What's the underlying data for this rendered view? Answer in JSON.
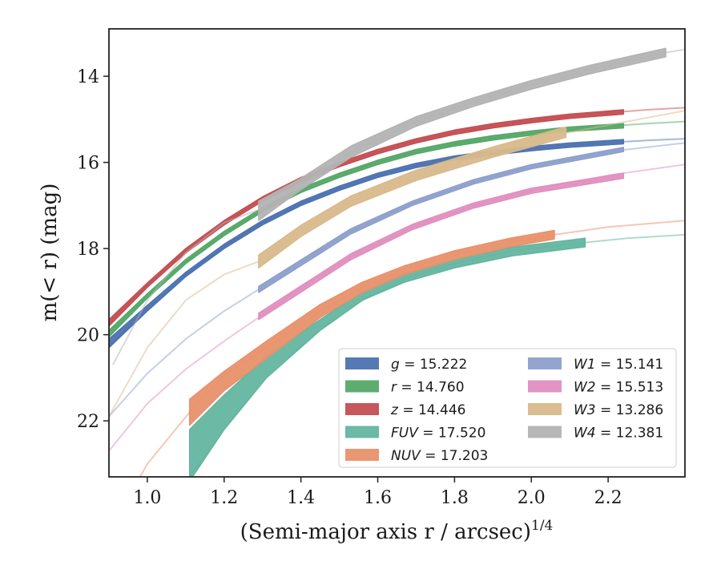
{
  "chart_data": {
    "type": "line",
    "title": "",
    "xlabel": "(Semi-major axis r / arcsec)",
    "xlabel_exponent": "1/4",
    "ylabel": "m(< r) (mag)",
    "xlim": [
      0.9,
      2.4
    ],
    "ylim": [
      23.3,
      12.9
    ],
    "y_inverted": true,
    "grid": false,
    "legend_placement": "lower-right",
    "xticks": [
      "1.0",
      "1.2",
      "1.4",
      "1.6",
      "1.8",
      "2.0",
      "2.2"
    ],
    "yticks": [
      "14",
      "16",
      "18",
      "20",
      "22"
    ],
    "series": [
      {
        "name": "g",
        "label_value": "= 15.222",
        "color": "#4c72b0",
        "light": {
          "x": [
            0.9,
            1.0,
            1.1,
            1.2,
            1.3,
            1.4,
            1.5,
            1.6,
            1.7,
            1.8,
            1.9,
            2.0,
            2.1,
            2.2,
            2.3,
            2.4
          ],
          "y": [
            20.25,
            19.4,
            18.6,
            17.95,
            17.4,
            16.95,
            16.6,
            16.3,
            16.07,
            15.9,
            15.78,
            15.68,
            15.6,
            15.54,
            15.49,
            15.45
          ]
        },
        "band": {
          "x": [
            0.9,
            1.0,
            1.1,
            1.2,
            1.3,
            1.4,
            1.5,
            1.6,
            1.7,
            1.8,
            1.9,
            2.0,
            2.1,
            2.24
          ],
          "y_lo": [
            20.3,
            19.45,
            18.65,
            18.0,
            17.45,
            17.0,
            16.65,
            16.35,
            16.12,
            15.95,
            15.83,
            15.73,
            15.65,
            15.57
          ],
          "y_hi": [
            20.1,
            19.32,
            18.55,
            17.9,
            17.35,
            16.9,
            16.55,
            16.25,
            16.02,
            15.85,
            15.73,
            15.63,
            15.55,
            15.47
          ]
        }
      },
      {
        "name": "r",
        "label_value": "= 14.760",
        "color": "#55a868",
        "light": {
          "x": [
            0.9,
            1.0,
            1.1,
            1.2,
            1.3,
            1.4,
            1.5,
            1.6,
            1.7,
            1.8,
            1.9,
            2.0,
            2.1,
            2.2,
            2.3,
            2.4
          ],
          "y": [
            19.95,
            19.1,
            18.3,
            17.65,
            17.1,
            16.65,
            16.3,
            16.0,
            15.75,
            15.57,
            15.43,
            15.32,
            15.23,
            15.16,
            15.1,
            15.05
          ]
        },
        "band": {
          "x": [
            0.9,
            1.0,
            1.1,
            1.2,
            1.3,
            1.4,
            1.5,
            1.6,
            1.7,
            1.8,
            1.9,
            2.0,
            2.1,
            2.24
          ],
          "y_lo": [
            20.05,
            19.15,
            18.35,
            17.7,
            17.15,
            16.7,
            16.35,
            16.05,
            15.8,
            15.62,
            15.48,
            15.37,
            15.28,
            15.2
          ],
          "y_hi": [
            19.9,
            19.05,
            18.25,
            17.6,
            17.05,
            16.6,
            16.25,
            15.95,
            15.7,
            15.52,
            15.38,
            15.27,
            15.18,
            15.1
          ]
        }
      },
      {
        "name": "z",
        "label_value": "= 14.446",
        "color": "#c44e52",
        "light": {
          "x": [
            0.9,
            1.0,
            1.1,
            1.2,
            1.3,
            1.4,
            1.5,
            1.6,
            1.7,
            1.8,
            1.9,
            2.0,
            2.1,
            2.2,
            2.3,
            2.4
          ],
          "y": [
            19.7,
            18.85,
            18.05,
            17.4,
            16.85,
            16.4,
            16.05,
            15.75,
            15.5,
            15.3,
            15.15,
            15.03,
            14.93,
            14.85,
            14.78,
            14.73
          ]
        },
        "band": {
          "x": [
            0.9,
            1.0,
            1.1,
            1.2,
            1.3,
            1.4,
            1.5,
            1.6,
            1.7,
            1.8,
            1.9,
            2.0,
            2.1,
            2.24
          ],
          "y_lo": [
            19.8,
            18.9,
            18.1,
            17.45,
            16.9,
            16.45,
            16.1,
            15.8,
            15.55,
            15.35,
            15.2,
            15.08,
            14.98,
            14.88
          ],
          "y_hi": [
            19.65,
            18.8,
            18.0,
            17.35,
            16.8,
            16.35,
            16.0,
            15.7,
            15.45,
            15.25,
            15.1,
            14.98,
            14.88,
            14.78
          ]
        }
      },
      {
        "name": "FUV",
        "label_value": "= 17.520",
        "color": "#64b5a0",
        "light": {
          "x": [
            1.0,
            1.05,
            1.11,
            1.2,
            1.31,
            1.45,
            1.56,
            1.67,
            1.8,
            1.95,
            2.15,
            2.25,
            2.4
          ],
          "y": [
            24.6,
            24.0,
            23.3,
            22.2,
            21.0,
            19.9,
            19.2,
            18.7,
            18.35,
            18.05,
            17.85,
            17.76,
            17.68
          ]
        },
        "band": {
          "x": [
            1.11,
            1.2,
            1.31,
            1.45,
            1.56,
            1.67,
            1.8,
            1.95,
            2.14
          ],
          "y_lo": [
            23.4,
            22.2,
            21.0,
            19.9,
            19.2,
            18.78,
            18.45,
            18.17,
            17.96
          ],
          "y_hi": [
            22.2,
            21.4,
            20.5,
            19.65,
            19.0,
            18.58,
            18.25,
            17.97,
            17.76
          ]
        }
      },
      {
        "name": "NUV",
        "label_value": "= 17.203",
        "color": "#e8916a",
        "light": {
          "x": [
            0.9,
            1.0,
            1.11,
            1.2,
            1.31,
            1.45,
            1.56,
            1.67,
            1.8,
            1.95,
            2.06,
            2.2,
            2.4
          ],
          "y": [
            24.6,
            23.0,
            21.8,
            20.95,
            20.3,
            19.45,
            18.9,
            18.5,
            18.15,
            17.85,
            17.68,
            17.5,
            17.35
          ]
        },
        "band": {
          "x": [
            1.11,
            1.2,
            1.31,
            1.45,
            1.56,
            1.67,
            1.8,
            1.95,
            2.06
          ],
          "y_lo": [
            22.1,
            21.3,
            20.55,
            19.6,
            19.02,
            18.6,
            18.25,
            17.95,
            17.78
          ],
          "y_hi": [
            21.5,
            20.85,
            20.15,
            19.3,
            18.78,
            18.4,
            18.05,
            17.75,
            17.58
          ]
        }
      },
      {
        "name": "W1",
        "label_value": "= 15.141",
        "color": "#8da0cb",
        "light": {
          "x": [
            0.9,
            1.0,
            1.1,
            1.2,
            1.29,
            1.4,
            1.53,
            1.69,
            1.85,
            2.0,
            2.2,
            2.4
          ],
          "y": [
            21.9,
            20.9,
            20.1,
            19.45,
            18.95,
            18.3,
            17.6,
            16.95,
            16.45,
            16.1,
            15.75,
            15.55
          ]
        },
        "band": {
          "x": [
            1.29,
            1.53,
            1.69,
            1.85,
            2.0,
            2.24
          ],
          "y_lo": [
            19.02,
            17.66,
            17.0,
            16.5,
            16.15,
            15.75
          ],
          "y_hi": [
            18.88,
            17.54,
            16.9,
            16.4,
            16.05,
            15.65
          ]
        }
      },
      {
        "name": "W2",
        "label_value": "= 15.513",
        "color": "#e08fbf",
        "light": {
          "x": [
            0.9,
            1.0,
            1.1,
            1.2,
            1.29,
            1.4,
            1.53,
            1.69,
            1.85,
            2.0,
            2.2,
            2.4
          ],
          "y": [
            22.7,
            21.6,
            20.8,
            20.15,
            19.6,
            18.9,
            18.2,
            17.5,
            17.0,
            16.65,
            16.3,
            16.05
          ]
        },
        "band": {
          "x": [
            1.29,
            1.53,
            1.69,
            1.85,
            2.0,
            2.24
          ],
          "y_lo": [
            19.65,
            18.26,
            17.56,
            17.06,
            16.72,
            16.37
          ],
          "y_hi": [
            19.5,
            18.12,
            17.44,
            16.94,
            16.6,
            16.25
          ]
        }
      },
      {
        "name": "W3",
        "label_value": "= 13.286",
        "color": "#d9b98c",
        "light": {
          "x": [
            0.9,
            1.0,
            1.1,
            1.2,
            1.29,
            1.4,
            1.53,
            1.7,
            1.9,
            2.1,
            2.4
          ],
          "y": [
            21.9,
            20.3,
            19.2,
            18.6,
            18.3,
            17.6,
            16.9,
            16.3,
            15.75,
            15.3,
            14.8
          ]
        },
        "band": {
          "x": [
            1.29,
            1.4,
            1.53,
            1.7,
            1.9,
            2.09
          ],
          "y_lo": [
            18.45,
            17.72,
            17.02,
            16.42,
            15.88,
            15.42
          ],
          "y_hi": [
            18.15,
            17.46,
            16.78,
            16.18,
            15.64,
            15.18
          ]
        }
      },
      {
        "name": "W4",
        "label_value": "= 12.381",
        "color": "#b3b3b3",
        "light": {
          "x": [
            0.91,
            1.0,
            1.1,
            1.2,
            1.29,
            1.4,
            1.53,
            1.7,
            1.85,
            2.0,
            2.15,
            2.35,
            2.4
          ],
          "y": [
            20.7,
            19.2,
            18.1,
            17.4,
            17.1,
            16.5,
            15.75,
            15.05,
            14.6,
            14.2,
            13.85,
            13.45,
            13.38
          ]
        },
        "band": {
          "x": [
            1.29,
            1.4,
            1.53,
            1.7,
            1.85,
            2.0,
            2.15,
            2.35
          ],
          "y_lo": [
            17.35,
            16.63,
            15.88,
            15.16,
            14.7,
            14.3,
            13.95,
            13.55
          ],
          "y_hi": [
            16.9,
            16.37,
            15.62,
            14.94,
            14.5,
            14.1,
            13.75,
            13.35
          ]
        }
      }
    ]
  }
}
